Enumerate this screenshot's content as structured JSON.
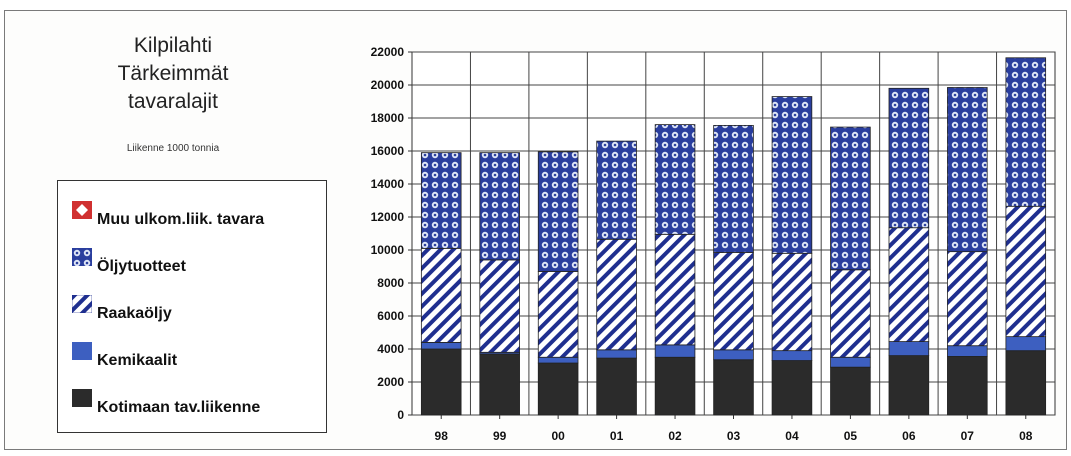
{
  "title_lines": [
    "Kilpilahti",
    "Tärkeimmät",
    "tavaralajit"
  ],
  "subtitle": "Liikenne 1000 tonnia",
  "legend": [
    {
      "label": "Muu ulkom.liik. tavara",
      "key": "muu"
    },
    {
      "label": "Öljytuotteet",
      "key": "oljy"
    },
    {
      "label": "Raakaöljy",
      "key": "raaka"
    },
    {
      "label": "Kemikaalit",
      "key": "kemi"
    },
    {
      "label": "Kotimaan tav.liikenne",
      "key": "koti"
    }
  ],
  "chart_data": {
    "type": "bar",
    "stacked": true,
    "categories": [
      "98",
      "99",
      "00",
      "01",
      "02",
      "03",
      "04",
      "05",
      "06",
      "07",
      "08"
    ],
    "ylim": [
      0,
      22000
    ],
    "yticks": [
      0,
      2000,
      4000,
      6000,
      8000,
      10000,
      12000,
      14000,
      16000,
      18000,
      20000,
      22000
    ],
    "grid": true,
    "legend_placement": "left",
    "series": [
      {
        "name": "Kotimaan tav.liikenne",
        "key": "koti",
        "color": "#2b2b2b",
        "values": [
          4000,
          3700,
          3150,
          3450,
          3500,
          3350,
          3300,
          2900,
          3600,
          3550,
          3900
        ]
      },
      {
        "name": "Kemikaalit",
        "key": "kemi",
        "color": "#3d5fc0",
        "values": [
          400,
          100,
          350,
          500,
          750,
          600,
          600,
          600,
          850,
          650,
          850
        ]
      },
      {
        "name": "Raakaöljy",
        "key": "raaka",
        "color": "#1f2f8f",
        "values": [
          5700,
          5600,
          5200,
          6700,
          6700,
          5900,
          5900,
          5300,
          6900,
          5700,
          7900
        ]
      },
      {
        "name": "Öljytuotteet",
        "key": "oljy",
        "color": "#2a3e9e",
        "values": [
          5800,
          6500,
          7250,
          5950,
          6650,
          7700,
          9500,
          8650,
          8450,
          9950,
          9000
        ]
      },
      {
        "name": "Muu ulkom.liik. tavara",
        "key": "muu",
        "color": "#d03030",
        "values": [
          0,
          0,
          0,
          0,
          0,
          0,
          0,
          0,
          0,
          0,
          0
        ]
      }
    ]
  }
}
